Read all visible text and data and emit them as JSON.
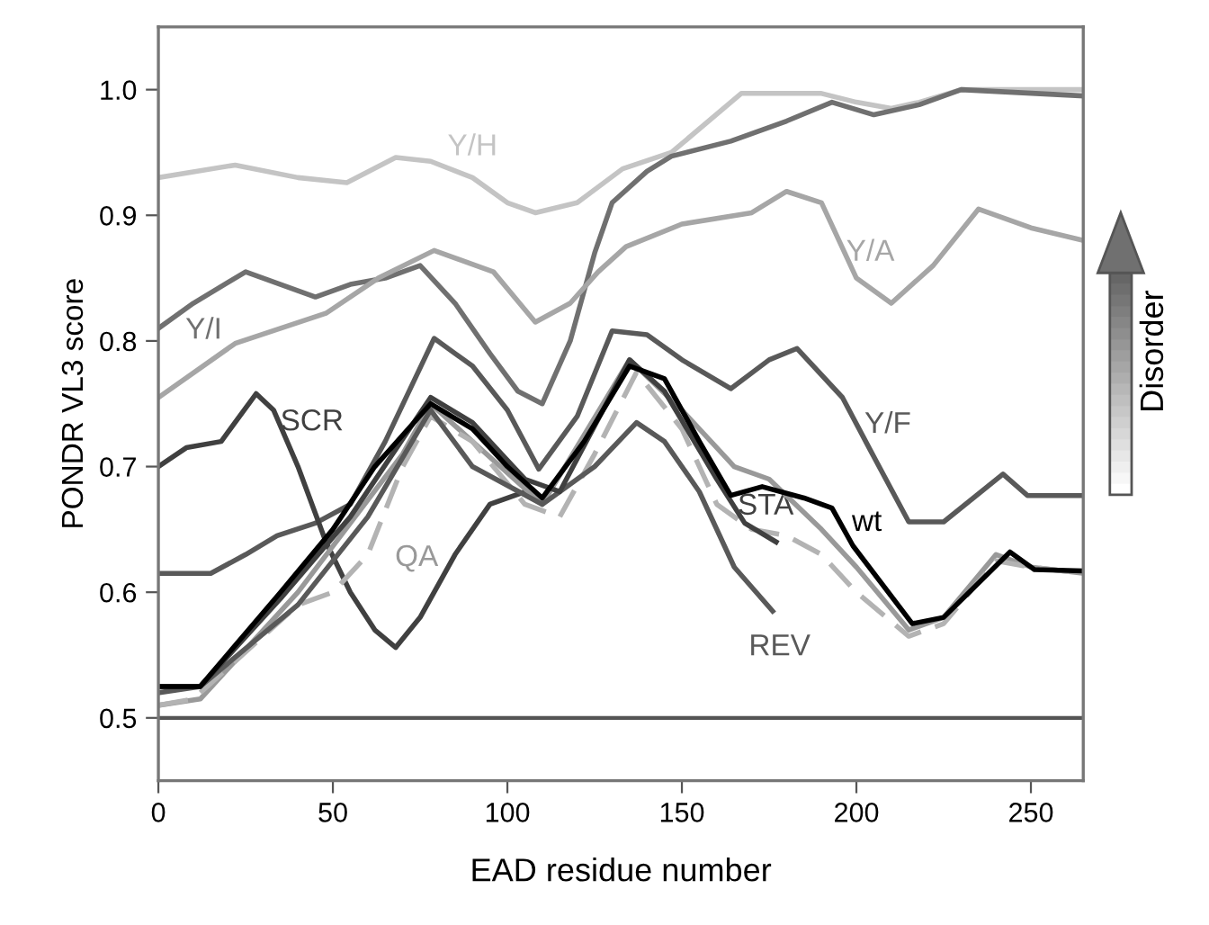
{
  "chart_data": {
    "type": "line",
    "xlabel": "EAD residue number",
    "ylabel": "PONDR VL3 score",
    "xlim": [
      0,
      265
    ],
    "ylim": [
      0.45,
      1.05
    ],
    "xticks": [
      0,
      50,
      100,
      150,
      200,
      250
    ],
    "yticks": [
      {
        "value": 0.5,
        "label": "0.5"
      },
      {
        "value": 0.6,
        "label": "0.6"
      },
      {
        "value": 0.7,
        "label": "0.7"
      },
      {
        "value": 0.8,
        "label": "0.8"
      },
      {
        "value": 0.9,
        "label": "0.9"
      },
      {
        "value": 1.0,
        "label": "1.0"
      }
    ],
    "grid": false,
    "marker": "none",
    "series": [
      {
        "name": "Y/H",
        "color": "#c4c4c4",
        "x": [
          0,
          22,
          40,
          54,
          68,
          78,
          90,
          100,
          108,
          120,
          133,
          147,
          167,
          190,
          200,
          210,
          218,
          230,
          265
        ],
        "values": [
          0.93,
          0.94,
          0.93,
          0.926,
          0.946,
          0.943,
          0.93,
          0.91,
          0.902,
          0.91,
          0.937,
          0.95,
          0.997,
          0.997,
          0.99,
          0.985,
          0.99,
          1.0,
          1.0
        ]
      },
      {
        "name": "Y/I",
        "color": "#707070",
        "x": [
          0,
          10,
          25,
          35,
          45,
          55,
          65,
          75,
          85,
          95,
          103,
          110,
          118,
          125,
          130,
          140,
          147,
          164,
          180,
          193,
          205,
          218,
          230,
          265
        ],
        "values": [
          0.81,
          0.83,
          0.855,
          0.845,
          0.835,
          0.845,
          0.85,
          0.86,
          0.83,
          0.79,
          0.76,
          0.75,
          0.8,
          0.87,
          0.91,
          0.935,
          0.947,
          0.959,
          0.975,
          0.99,
          0.98,
          0.988,
          1.0,
          0.995
        ]
      },
      {
        "name": "Y/A",
        "color": "#a6a6a6",
        "x": [
          0,
          22,
          48,
          63,
          79,
          96,
          108,
          118,
          126,
          134,
          150,
          170,
          180,
          190,
          200,
          210,
          222,
          235,
          250,
          265
        ],
        "values": [
          0.755,
          0.798,
          0.822,
          0.85,
          0.872,
          0.855,
          0.815,
          0.83,
          0.855,
          0.875,
          0.893,
          0.902,
          0.919,
          0.91,
          0.85,
          0.83,
          0.86,
          0.905,
          0.89,
          0.88
        ]
      },
      {
        "name": "Y/F",
        "color": "#595959",
        "x": [
          0,
          15,
          25,
          34,
          45,
          55,
          65,
          79,
          90,
          100,
          109,
          120,
          130,
          140,
          150,
          164,
          175,
          183,
          196,
          204,
          215,
          225,
          242,
          249,
          265
        ],
        "values": [
          0.615,
          0.615,
          0.63,
          0.645,
          0.655,
          0.67,
          0.72,
          0.802,
          0.78,
          0.745,
          0.698,
          0.74,
          0.808,
          0.805,
          0.785,
          0.762,
          0.785,
          0.794,
          0.755,
          0.713,
          0.656,
          0.656,
          0.694,
          0.677,
          0.677
        ]
      },
      {
        "name": "SCR",
        "color": "#404040",
        "x": [
          0,
          8,
          18,
          28,
          33,
          40,
          48,
          55,
          62,
          68,
          75,
          85,
          95,
          105
        ],
        "values": [
          0.7,
          0.715,
          0.72,
          0.758,
          0.745,
          0.7,
          0.64,
          0.6,
          0.57,
          0.556,
          0.58,
          0.63,
          0.67,
          0.68
        ]
      },
      {
        "name": "QA",
        "color": "#999999",
        "x": [
          0,
          12,
          40,
          70,
          78,
          90,
          110,
          135,
          150,
          165,
          175,
          190,
          200,
          215,
          225,
          240,
          250,
          265
        ],
        "values": [
          0.51,
          0.515,
          0.6,
          0.71,
          0.75,
          0.72,
          0.67,
          0.785,
          0.745,
          0.7,
          0.69,
          0.65,
          0.62,
          0.57,
          0.58,
          0.63,
          0.62,
          0.615
        ]
      },
      {
        "color": "#b3b3b3",
        "line_style": "dashed",
        "x": [
          0,
          10,
          20,
          40,
          50,
          60,
          70,
          78,
          90,
          105,
          115,
          125,
          137,
          150,
          160,
          170,
          180,
          190,
          200,
          215,
          225,
          240,
          250,
          265
        ],
        "values": [
          0.51,
          0.515,
          0.54,
          0.59,
          0.6,
          0.63,
          0.7,
          0.74,
          0.72,
          0.67,
          0.66,
          0.71,
          0.775,
          0.73,
          0.67,
          0.65,
          0.645,
          0.63,
          0.6,
          0.565,
          0.575,
          0.625,
          0.62,
          0.615
        ]
      },
      {
        "name": "REV",
        "color": "#595959",
        "x": [
          0,
          12,
          40,
          60,
          78,
          90,
          110,
          125,
          137,
          145,
          155,
          165,
          176
        ],
        "values": [
          0.52,
          0.525,
          0.59,
          0.66,
          0.745,
          0.7,
          0.67,
          0.7,
          0.735,
          0.72,
          0.68,
          0.62,
          0.585
        ]
      },
      {
        "name": "STA",
        "color": "#404040",
        "x": [
          0,
          12,
          35,
          55,
          78,
          90,
          105,
          115,
          135,
          145,
          160,
          168,
          177
        ],
        "values": [
          0.525,
          0.525,
          0.595,
          0.66,
          0.755,
          0.735,
          0.69,
          0.68,
          0.785,
          0.76,
          0.69,
          0.655,
          0.64
        ]
      },
      {
        "name": "wt",
        "color": "#000000",
        "x": [
          0,
          12,
          35,
          50,
          62,
          78,
          90,
          100,
          110,
          122,
          135,
          145,
          155,
          164,
          173,
          185,
          193,
          199,
          216,
          225,
          244,
          251,
          265
        ],
        "values": [
          0.525,
          0.525,
          0.6,
          0.65,
          0.7,
          0.75,
          0.73,
          0.7,
          0.675,
          0.72,
          0.78,
          0.77,
          0.72,
          0.677,
          0.684,
          0.675,
          0.667,
          0.637,
          0.575,
          0.58,
          0.632,
          0.618,
          0.617
        ]
      }
    ],
    "ref_lines": [
      {
        "axis": "y",
        "value": 0.5,
        "color": "#555555"
      }
    ],
    "annotations": [
      "Disorder"
    ]
  }
}
